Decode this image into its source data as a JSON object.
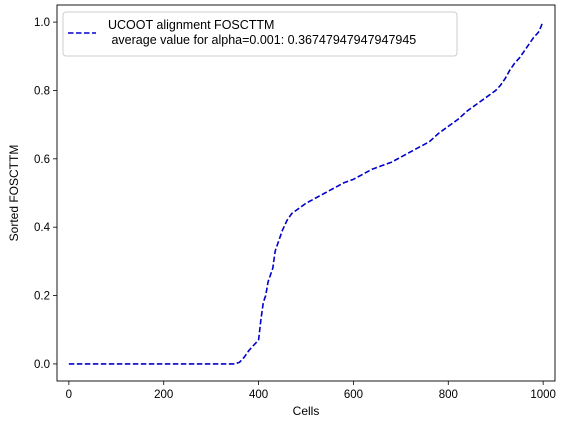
{
  "chart_data": {
    "type": "line",
    "xlabel": "Cells",
    "ylabel": "Sorted FOSCTTM",
    "xlim": [
      -25,
      1025
    ],
    "ylim": [
      -0.05,
      1.05
    ],
    "xticks": [
      0,
      200,
      400,
      600,
      800,
      1000
    ],
    "xtick_labels": [
      "0",
      "200",
      "400",
      "600",
      "800",
      "1000"
    ],
    "yticks": [
      0.0,
      0.2,
      0.4,
      0.6,
      0.8,
      1.0
    ],
    "ytick_labels": [
      "0.0",
      "0.2",
      "0.4",
      "0.6",
      "0.8",
      "1.0"
    ],
    "grid": false,
    "legend_position": "top-left",
    "series": [
      {
        "name": "UCOOT alignment FOSCTTM\n average value for alpha=0.001: 0.36747947947947945",
        "color": "#0000cc",
        "line_style": "dashed",
        "x": [
          0,
          100,
          200,
          300,
          350,
          360,
          370,
          380,
          390,
          400,
          405,
          410,
          415,
          420,
          425,
          430,
          435,
          440,
          445,
          450,
          455,
          460,
          465,
          470,
          475,
          480,
          490,
          500,
          520,
          540,
          560,
          580,
          600,
          620,
          640,
          660,
          680,
          700,
          720,
          740,
          760,
          780,
          800,
          820,
          840,
          860,
          880,
          900,
          910,
          920,
          930,
          940,
          950,
          960,
          970,
          980,
          990,
          995,
          999
        ],
        "y": [
          0.0,
          0.0,
          0.0,
          0.0,
          0.0,
          0.005,
          0.02,
          0.04,
          0.055,
          0.07,
          0.13,
          0.18,
          0.2,
          0.24,
          0.26,
          0.28,
          0.33,
          0.35,
          0.37,
          0.39,
          0.405,
          0.42,
          0.43,
          0.44,
          0.445,
          0.45,
          0.46,
          0.47,
          0.485,
          0.5,
          0.515,
          0.53,
          0.54,
          0.555,
          0.57,
          0.58,
          0.59,
          0.605,
          0.62,
          0.635,
          0.65,
          0.675,
          0.695,
          0.715,
          0.74,
          0.76,
          0.78,
          0.8,
          0.815,
          0.835,
          0.86,
          0.88,
          0.895,
          0.915,
          0.935,
          0.955,
          0.97,
          0.985,
          1.0
        ]
      }
    ]
  }
}
